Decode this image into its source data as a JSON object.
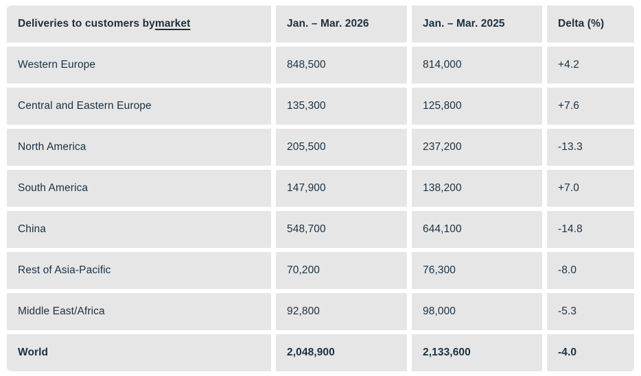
{
  "colors": {
    "cell_background": "#e6e6e6",
    "text": "#1e2f3c",
    "page_background": "#ffffff"
  },
  "table": {
    "header": {
      "market_prefix": "Deliveries to customers by ",
      "market_link": "market",
      "col_2026": "Jan. – Mar. 2026",
      "col_2025": "Jan. – Mar. 2025",
      "col_delta": "Delta (%)"
    },
    "rows": [
      {
        "market": "Western Europe",
        "y2026": "848,500",
        "y2025": "814,000",
        "delta": "+4.2"
      },
      {
        "market": "Central and Eastern Europe",
        "y2026": "135,300",
        "y2025": "125,800",
        "delta": "+7.6"
      },
      {
        "market": "North America",
        "y2026": "205,500",
        "y2025": "237,200",
        "delta": "-13.3"
      },
      {
        "market": "South America",
        "y2026": "147,900",
        "y2025": "138,200",
        "delta": "+7.0"
      },
      {
        "market": "China",
        "y2026": "548,700",
        "y2025": "644,100",
        "delta": "-14.8"
      },
      {
        "market": "Rest of Asia-Pacific",
        "y2026": "70,200",
        "y2025": "76,300",
        "delta": "-8.0"
      },
      {
        "market": "Middle East/Africa",
        "y2026": "92,800",
        "y2025": "98,000",
        "delta": "-5.3"
      },
      {
        "market": "World",
        "y2026": "2,048,900",
        "y2025": "2,133,600",
        "delta": "-4.0"
      }
    ]
  },
  "chart_data": {
    "type": "table",
    "title": "Deliveries to customers by market",
    "columns": [
      "Market",
      "Jan. – Mar. 2026",
      "Jan. – Mar. 2025",
      "Delta (%)"
    ],
    "rows": [
      [
        "Western Europe",
        848500,
        814000,
        4.2
      ],
      [
        "Central and Eastern Europe",
        135300,
        125800,
        7.6
      ],
      [
        "North America",
        205500,
        237200,
        -13.3
      ],
      [
        "South America",
        147900,
        138200,
        7.0
      ],
      [
        "China",
        548700,
        644100,
        -14.8
      ],
      [
        "Rest of Asia-Pacific",
        70200,
        76300,
        -8.0
      ],
      [
        "Middle East/Africa",
        92800,
        98000,
        -5.3
      ],
      [
        "World",
        2048900,
        2133600,
        -4.0
      ]
    ]
  }
}
